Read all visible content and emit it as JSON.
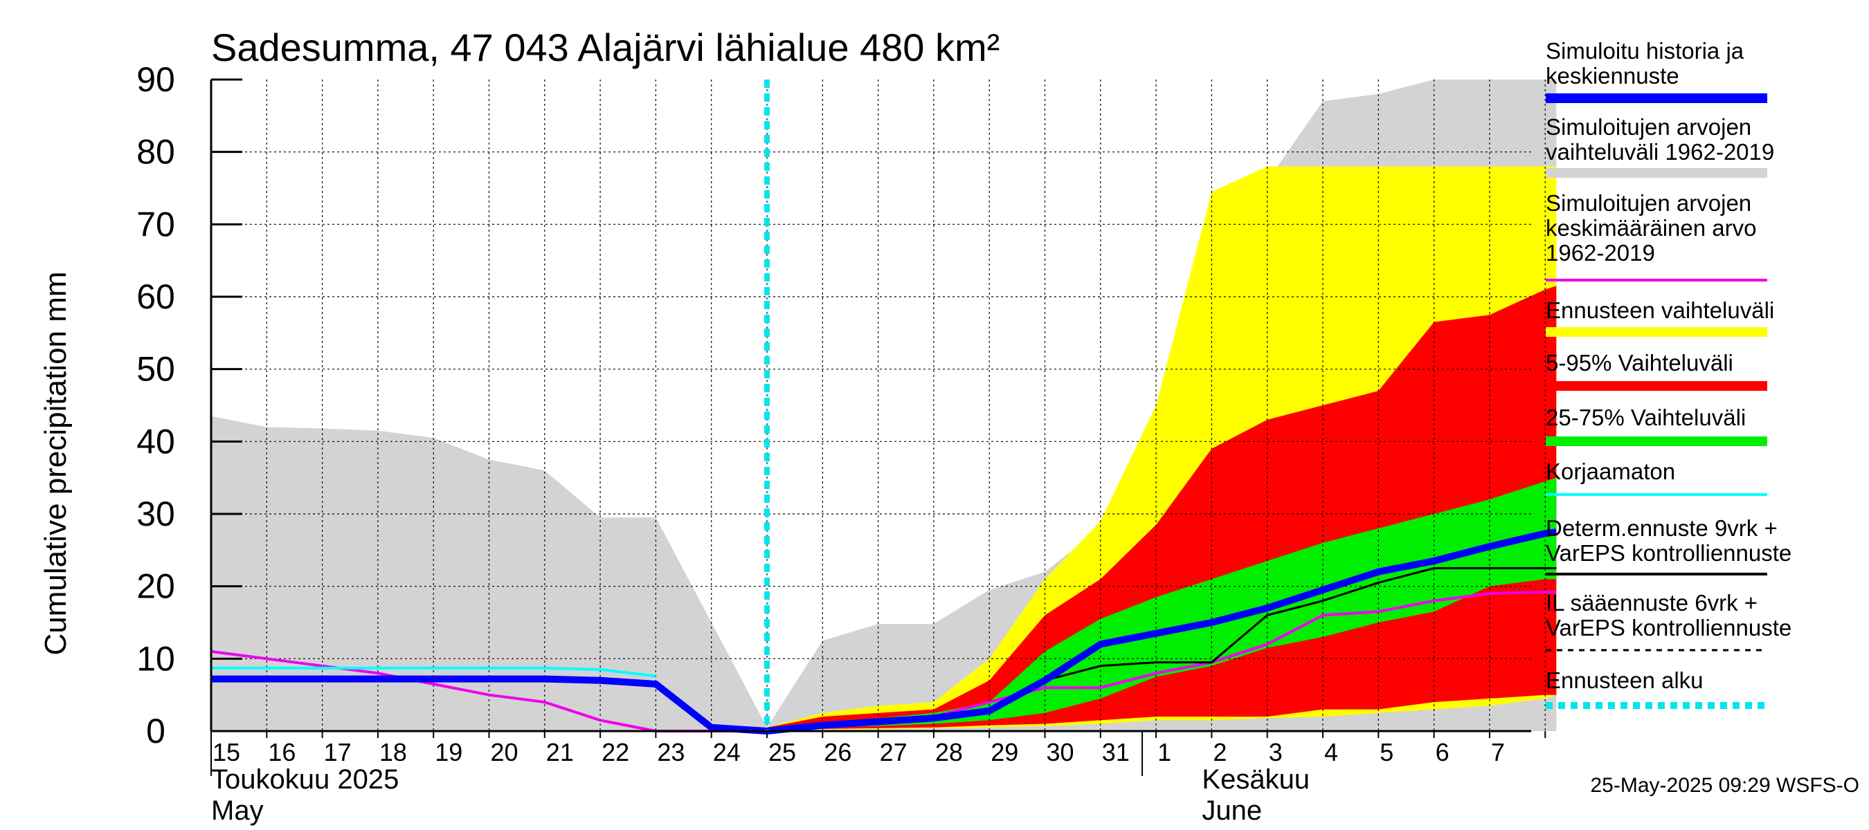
{
  "chart_data": {
    "type": "area",
    "title": "Sadesumma, 47 043 Alajärvi lähialue 480 km²",
    "ylabel": "Cumulative precipitation   mm",
    "ylim": [
      0,
      90
    ],
    "yticks": [
      0,
      10,
      20,
      30,
      40,
      50,
      60,
      70,
      80,
      90
    ],
    "grid": true,
    "x_tick_labels": [
      "15",
      "16",
      "17",
      "18",
      "19",
      "20",
      "21",
      "22",
      "23",
      "24",
      "25",
      "26",
      "27",
      "28",
      "29",
      "30",
      "31",
      "1",
      "2",
      "3",
      "4",
      "5",
      "6",
      "7"
    ],
    "month_labels": [
      {
        "fi": "Toukokuu  2025",
        "en": "May"
      },
      {
        "fi": "Kesäkuu",
        "en": "June"
      }
    ],
    "forecast_start_index": 10,
    "x_max_index": 24.2,
    "bands": {
      "historical_range": {
        "name": "Simuloitujen arvojen vaihteluväli 1962-2019",
        "color": "#d3d3d3",
        "upper": [
          [
            0,
            43.5
          ],
          [
            1,
            42
          ],
          [
            2,
            41.8
          ],
          [
            3,
            41.5
          ],
          [
            4,
            40.5
          ],
          [
            5,
            37.5
          ],
          [
            6,
            36
          ],
          [
            7,
            29.5
          ],
          [
            8,
            29.5
          ],
          [
            9,
            15
          ],
          [
            10,
            0.5
          ],
          [
            11,
            12.5
          ],
          [
            12,
            14.8
          ],
          [
            13,
            14.8
          ],
          [
            14,
            19.5
          ],
          [
            15,
            22
          ],
          [
            16,
            28
          ],
          [
            17,
            40
          ],
          [
            18,
            68
          ],
          [
            19,
            76
          ],
          [
            20,
            87
          ],
          [
            21,
            88
          ],
          [
            22,
            90
          ],
          [
            23,
            90
          ],
          [
            24,
            90
          ],
          [
            24.2,
            90
          ]
        ],
        "lower": [
          [
            0,
            0
          ],
          [
            24.2,
            0
          ]
        ]
      },
      "ensemble_range": {
        "name": "Ennusteen vaihteluväli",
        "color": "#ffff00",
        "upper": [
          [
            10,
            0.5
          ],
          [
            11,
            2.5
          ],
          [
            12,
            3.5
          ],
          [
            13,
            4
          ],
          [
            14,
            10
          ],
          [
            15,
            21
          ],
          [
            16,
            29
          ],
          [
            17,
            45
          ],
          [
            18,
            74.5
          ],
          [
            19,
            78
          ],
          [
            20,
            78
          ],
          [
            21,
            78
          ],
          [
            22,
            78
          ],
          [
            23,
            78
          ],
          [
            24,
            78
          ],
          [
            24.2,
            78
          ]
        ],
        "lower": [
          [
            10,
            0.2
          ],
          [
            11,
            0.2
          ],
          [
            12,
            0.3
          ],
          [
            13,
            0.4
          ],
          [
            14,
            0.5
          ],
          [
            15,
            0.7
          ],
          [
            16,
            1
          ],
          [
            17,
            1.5
          ],
          [
            18,
            1.5
          ],
          [
            19,
            1.8
          ],
          [
            20,
            2
          ],
          [
            21,
            2.5
          ],
          [
            22,
            3
          ],
          [
            23,
            3.5
          ],
          [
            24,
            4.5
          ],
          [
            24.2,
            5
          ]
        ]
      },
      "p5_95": {
        "name": "5-95% Vaihteluväli",
        "color": "#ff0000",
        "upper": [
          [
            10,
            0.5
          ],
          [
            11,
            2
          ],
          [
            12,
            2.5
          ],
          [
            13,
            3
          ],
          [
            14,
            7
          ],
          [
            15,
            16
          ],
          [
            16,
            21
          ],
          [
            17,
            28.5
          ],
          [
            18,
            39
          ],
          [
            19,
            43
          ],
          [
            20,
            45
          ],
          [
            21,
            47
          ],
          [
            22,
            56.5
          ],
          [
            23,
            57.5
          ],
          [
            24,
            61
          ],
          [
            24.2,
            61.5
          ]
        ],
        "lower": [
          [
            10,
            0.3
          ],
          [
            11,
            0.3
          ],
          [
            12,
            0.4
          ],
          [
            13,
            0.5
          ],
          [
            14,
            0.8
          ],
          [
            15,
            1
          ],
          [
            16,
            1.5
          ],
          [
            17,
            2
          ],
          [
            18,
            2
          ],
          [
            19,
            2
          ],
          [
            20,
            3
          ],
          [
            21,
            3
          ],
          [
            22,
            4
          ],
          [
            23,
            4.5
          ],
          [
            24,
            5
          ],
          [
            24.2,
            5
          ]
        ]
      },
      "p25_75": {
        "name": "25-75% Vaihteluväli",
        "color": "#00ee00",
        "upper": [
          [
            10,
            0.4
          ],
          [
            11,
            1.2
          ],
          [
            12,
            1.8
          ],
          [
            13,
            2.5
          ],
          [
            14,
            4
          ],
          [
            15,
            11
          ],
          [
            16,
            15.5
          ],
          [
            17,
            18.5
          ],
          [
            18,
            21
          ],
          [
            19,
            23.5
          ],
          [
            20,
            26
          ],
          [
            21,
            28
          ],
          [
            22,
            30
          ],
          [
            23,
            32
          ],
          [
            24,
            34.5
          ],
          [
            24.2,
            35
          ]
        ],
        "lower": [
          [
            10,
            0.3
          ],
          [
            11,
            0.5
          ],
          [
            12,
            0.7
          ],
          [
            13,
            1
          ],
          [
            14,
            1.5
          ],
          [
            15,
            2.5
          ],
          [
            16,
            4.5
          ],
          [
            17,
            7.5
          ],
          [
            18,
            9
          ],
          [
            19,
            11.5
          ],
          [
            20,
            13
          ],
          [
            21,
            15
          ],
          [
            22,
            16.5
          ],
          [
            23,
            20
          ],
          [
            24,
            21
          ],
          [
            24.2,
            21
          ]
        ]
      }
    },
    "series": [
      {
        "name": "Simuloitu historia ja keskiennuste",
        "color": "#0000ff",
        "points": [
          [
            0,
            7.2
          ],
          [
            1,
            7.2
          ],
          [
            2,
            7.2
          ],
          [
            3,
            7.2
          ],
          [
            4,
            7.2
          ],
          [
            5,
            7.2
          ],
          [
            6,
            7.2
          ],
          [
            7,
            7
          ],
          [
            8,
            6.5
          ],
          [
            9,
            0.5
          ],
          [
            10,
            0
          ],
          [
            11,
            0.8
          ],
          [
            12,
            1.3
          ],
          [
            13,
            1.8
          ],
          [
            14,
            2.8
          ],
          [
            15,
            7
          ],
          [
            16,
            12
          ],
          [
            17,
            13.5
          ],
          [
            18,
            15
          ],
          [
            19,
            17
          ],
          [
            20,
            19.5
          ],
          [
            21,
            22
          ],
          [
            22,
            23.5
          ],
          [
            23,
            25.5
          ],
          [
            24,
            27.3
          ],
          [
            24.2,
            27.5
          ]
        ]
      },
      {
        "name": "Simuloitujen arvojen keskimääräinen arvo 1962-2019",
        "color": "#ee00ee",
        "points": [
          [
            0,
            11
          ],
          [
            1,
            10
          ],
          [
            2,
            9
          ],
          [
            3,
            8
          ],
          [
            4,
            6.5
          ],
          [
            5,
            5
          ],
          [
            6,
            4
          ],
          [
            7,
            1.5
          ],
          [
            8,
            0
          ],
          [
            9,
            0
          ],
          [
            10,
            0
          ],
          [
            11,
            0.5
          ],
          [
            12,
            1
          ],
          [
            13,
            2
          ],
          [
            14,
            4
          ],
          [
            15,
            6
          ],
          [
            16,
            6
          ],
          [
            17,
            8
          ],
          [
            18,
            9.5
          ],
          [
            19,
            12
          ],
          [
            20,
            16
          ],
          [
            21,
            16.5
          ],
          [
            22,
            18
          ],
          [
            23,
            19
          ],
          [
            24,
            19.2
          ],
          [
            24.2,
            19.2
          ]
        ]
      },
      {
        "name": "Korjaamaton",
        "color": "#00ffff",
        "points": [
          [
            0,
            8.7
          ],
          [
            1,
            8.7
          ],
          [
            2,
            8.7
          ],
          [
            3,
            8.7
          ],
          [
            4,
            8.7
          ],
          [
            5,
            8.7
          ],
          [
            6,
            8.7
          ],
          [
            7,
            8.5
          ],
          [
            8,
            7.6
          ]
        ]
      },
      {
        "name": "Determ.ennuste 9vrk + VarEPS kontrolliennuste",
        "color": "#000000",
        "points": [
          [
            10,
            0
          ],
          [
            11,
            0.5
          ],
          [
            12,
            1
          ],
          [
            13,
            1.5
          ],
          [
            14,
            2.5
          ],
          [
            15,
            7
          ],
          [
            16,
            9
          ],
          [
            17,
            9.5
          ],
          [
            18,
            9.5
          ],
          [
            19,
            16
          ],
          [
            20,
            18
          ],
          [
            21,
            20.5
          ],
          [
            22,
            22.5
          ],
          [
            23,
            22.5
          ],
          [
            24,
            22.5
          ],
          [
            24.2,
            22.5
          ]
        ]
      }
    ]
  },
  "legend": [
    {
      "lines": [
        "Simuloitu historia ja",
        "keskiennuste"
      ],
      "color": "#0000ff",
      "style": "thick"
    },
    {
      "lines": [
        "Simuloitujen arvojen",
        "vaihteluväli 1962-2019"
      ],
      "color": "#d3d3d3",
      "style": "thick"
    },
    {
      "lines": [
        "Simuloitujen arvojen",
        "keskimääräinen arvo",
        "   1962-2019"
      ],
      "color": "#ee00ee",
      "style": "line"
    },
    {
      "lines": [
        "Ennusteen vaihteluväli"
      ],
      "color": "#ffff00",
      "style": "thick"
    },
    {
      "lines": [
        "5-95% Vaihteluväli"
      ],
      "color": "#ff0000",
      "style": "thick"
    },
    {
      "lines": [
        "25-75% Vaihteluväli"
      ],
      "color": "#00ee00",
      "style": "thick"
    },
    {
      "lines": [
        "Korjaamaton"
      ],
      "color": "#00ffff",
      "style": "line"
    },
    {
      "lines": [
        "Determ.ennuste 9vrk +",
        "VarEPS kontrolliennuste"
      ],
      "color": "#000000",
      "style": "line"
    },
    {
      "lines": [
        "IL sääennuste 6vrk  +",
        "  VarEPS kontrolliennuste"
      ],
      "color": "#000000",
      "style": "dashed"
    },
    {
      "lines": [
        "Ennusteen alku"
      ],
      "color": "#00e5ee",
      "style": "dotted"
    }
  ],
  "footer": "25-May-2025 09:29 WSFS-O"
}
